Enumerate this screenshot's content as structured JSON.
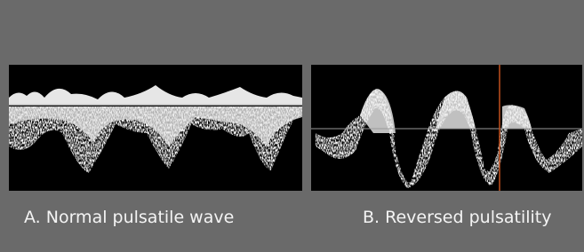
{
  "panels": [
    {
      "caption": "A. Normal pulsatile wave"
    },
    {
      "caption": "B. Reversed pulsatility"
    }
  ]
}
